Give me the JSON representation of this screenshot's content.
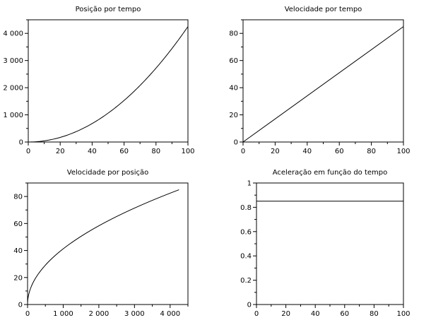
{
  "chart_data": [
    {
      "type": "line",
      "title": "Posição por tempo",
      "xlabel": "",
      "ylabel": "",
      "xlim": [
        0,
        100
      ],
      "ylim": [
        0,
        4500
      ],
      "xticks": [
        0,
        20,
        40,
        60,
        80,
        100
      ],
      "yticks": [
        0,
        1000,
        2000,
        3000,
        4000
      ],
      "xtick_labels": [
        "0",
        "20",
        "40",
        "60",
        "80",
        "100"
      ],
      "ytick_labels": [
        "0",
        "1 000",
        "2 000",
        "3 000",
        "4 000"
      ],
      "grid": false,
      "series": [
        {
          "x": [
            0,
            10,
            20,
            30,
            40,
            50,
            60,
            70,
            80,
            90,
            100
          ],
          "y": [
            0,
            43,
            170,
            383,
            680,
            1063,
            1530,
            2083,
            2720,
            3443,
            4250
          ]
        }
      ]
    },
    {
      "type": "line",
      "title": "Velocidade por tempo",
      "xlabel": "",
      "ylabel": "",
      "xlim": [
        0,
        100
      ],
      "ylim": [
        0,
        90
      ],
      "xticks": [
        0,
        20,
        40,
        60,
        80,
        100
      ],
      "yticks": [
        0,
        20,
        40,
        60,
        80
      ],
      "xtick_labels": [
        "0",
        "20",
        "40",
        "60",
        "80",
        "100"
      ],
      "ytick_labels": [
        "0",
        "20",
        "40",
        "60",
        "80"
      ],
      "grid": false,
      "series": [
        {
          "x": [
            0,
            100
          ],
          "y": [
            0,
            85
          ]
        }
      ]
    },
    {
      "type": "line",
      "title": "Velocidade por posição",
      "xlabel": "",
      "ylabel": "",
      "xlim": [
        0,
        4500
      ],
      "ylim": [
        0,
        90
      ],
      "xticks": [
        0,
        1000,
        2000,
        3000,
        4000
      ],
      "yticks": [
        0,
        20,
        40,
        60,
        80
      ],
      "xtick_labels": [
        "0",
        "1 000",
        "2 000",
        "3 000",
        "4 000"
      ],
      "ytick_labels": [
        "0",
        "20",
        "40",
        "60",
        "80"
      ],
      "grid": false,
      "series": [
        {
          "x": [
            0,
            43,
            170,
            383,
            680,
            1063,
            1530,
            2083,
            2720,
            3443,
            4250
          ],
          "y": [
            0,
            8.5,
            17,
            25.5,
            34,
            42.5,
            51,
            59.5,
            68,
            76.5,
            85
          ]
        }
      ]
    },
    {
      "type": "line",
      "title": "Aceleração em função do tempo",
      "xlabel": "",
      "ylabel": "",
      "xlim": [
        0,
        100
      ],
      "ylim": [
        0,
        1
      ],
      "xticks": [
        0,
        20,
        40,
        60,
        80,
        100
      ],
      "yticks": [
        0,
        0.2,
        0.4,
        0.6,
        0.8,
        1
      ],
      "xtick_labels": [
        "0",
        "20",
        "40",
        "60",
        "80",
        "100"
      ],
      "ytick_labels": [
        "0",
        "0.2",
        "0.4",
        "0.6",
        "0.8",
        "1"
      ],
      "grid": false,
      "series": [
        {
          "x": [
            0,
            100
          ],
          "y": [
            0.85,
            0.85
          ]
        }
      ]
    }
  ]
}
